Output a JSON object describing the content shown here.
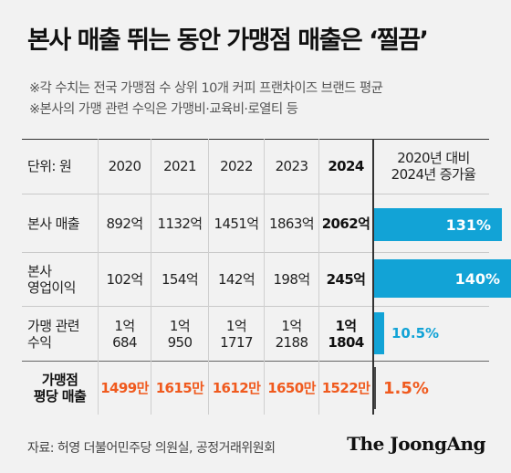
{
  "title": "본사 매출 뛰는 동안 가맹점 매출은 ‘찔끔’",
  "notes": [
    "※각 수치는 전국 가맹점 수 상위 10개 커피 프랜차이즈 브랜드 평균",
    "※본사의 가맹 관련 수익은 가맹비·교육비·로열티 등"
  ],
  "table": {
    "unit_label": "단위: 원",
    "years": [
      "2020",
      "2021",
      "2022",
      "2023",
      "2024"
    ],
    "growth_header_line1": "2020년 대비",
    "growth_header_line2": "2024년 증가율",
    "rows": [
      {
        "label_line1": "본사 매출",
        "label_line2": "",
        "values": [
          "892억",
          "1132억",
          "1451억",
          "1863억",
          "2062억"
        ],
        "growth": "131%",
        "growth_value": 131
      },
      {
        "label_line1": "본사",
        "label_line2": "영업이익",
        "values": [
          "102억",
          "154억",
          "142억",
          "198억",
          "245억"
        ],
        "growth": "140%",
        "growth_value": 140
      },
      {
        "label_line1": "가맹 관련",
        "label_line2": "수익",
        "values_line1": [
          "1억",
          "1억",
          "1억",
          "1억",
          "1억"
        ],
        "values_line2": [
          "684",
          "950",
          "1717",
          "2188",
          "1804"
        ],
        "growth": "10.5%",
        "growth_value": 10.5
      },
      {
        "label_line1": "가맹점",
        "label_line2": "평당 매출",
        "values": [
          "1499만",
          "1615만",
          "1612만",
          "1650만",
          "1522만"
        ],
        "growth": "1.5%",
        "growth_value": 1.5
      }
    ]
  },
  "colors": {
    "bar": "#12a3d6",
    "highlight": "#f05a1e",
    "background": "#f2f2f2"
  },
  "source": "자료: 허영 더불어민주당 의원실, 공정거래위원회",
  "brand": "The JoongAng"
}
